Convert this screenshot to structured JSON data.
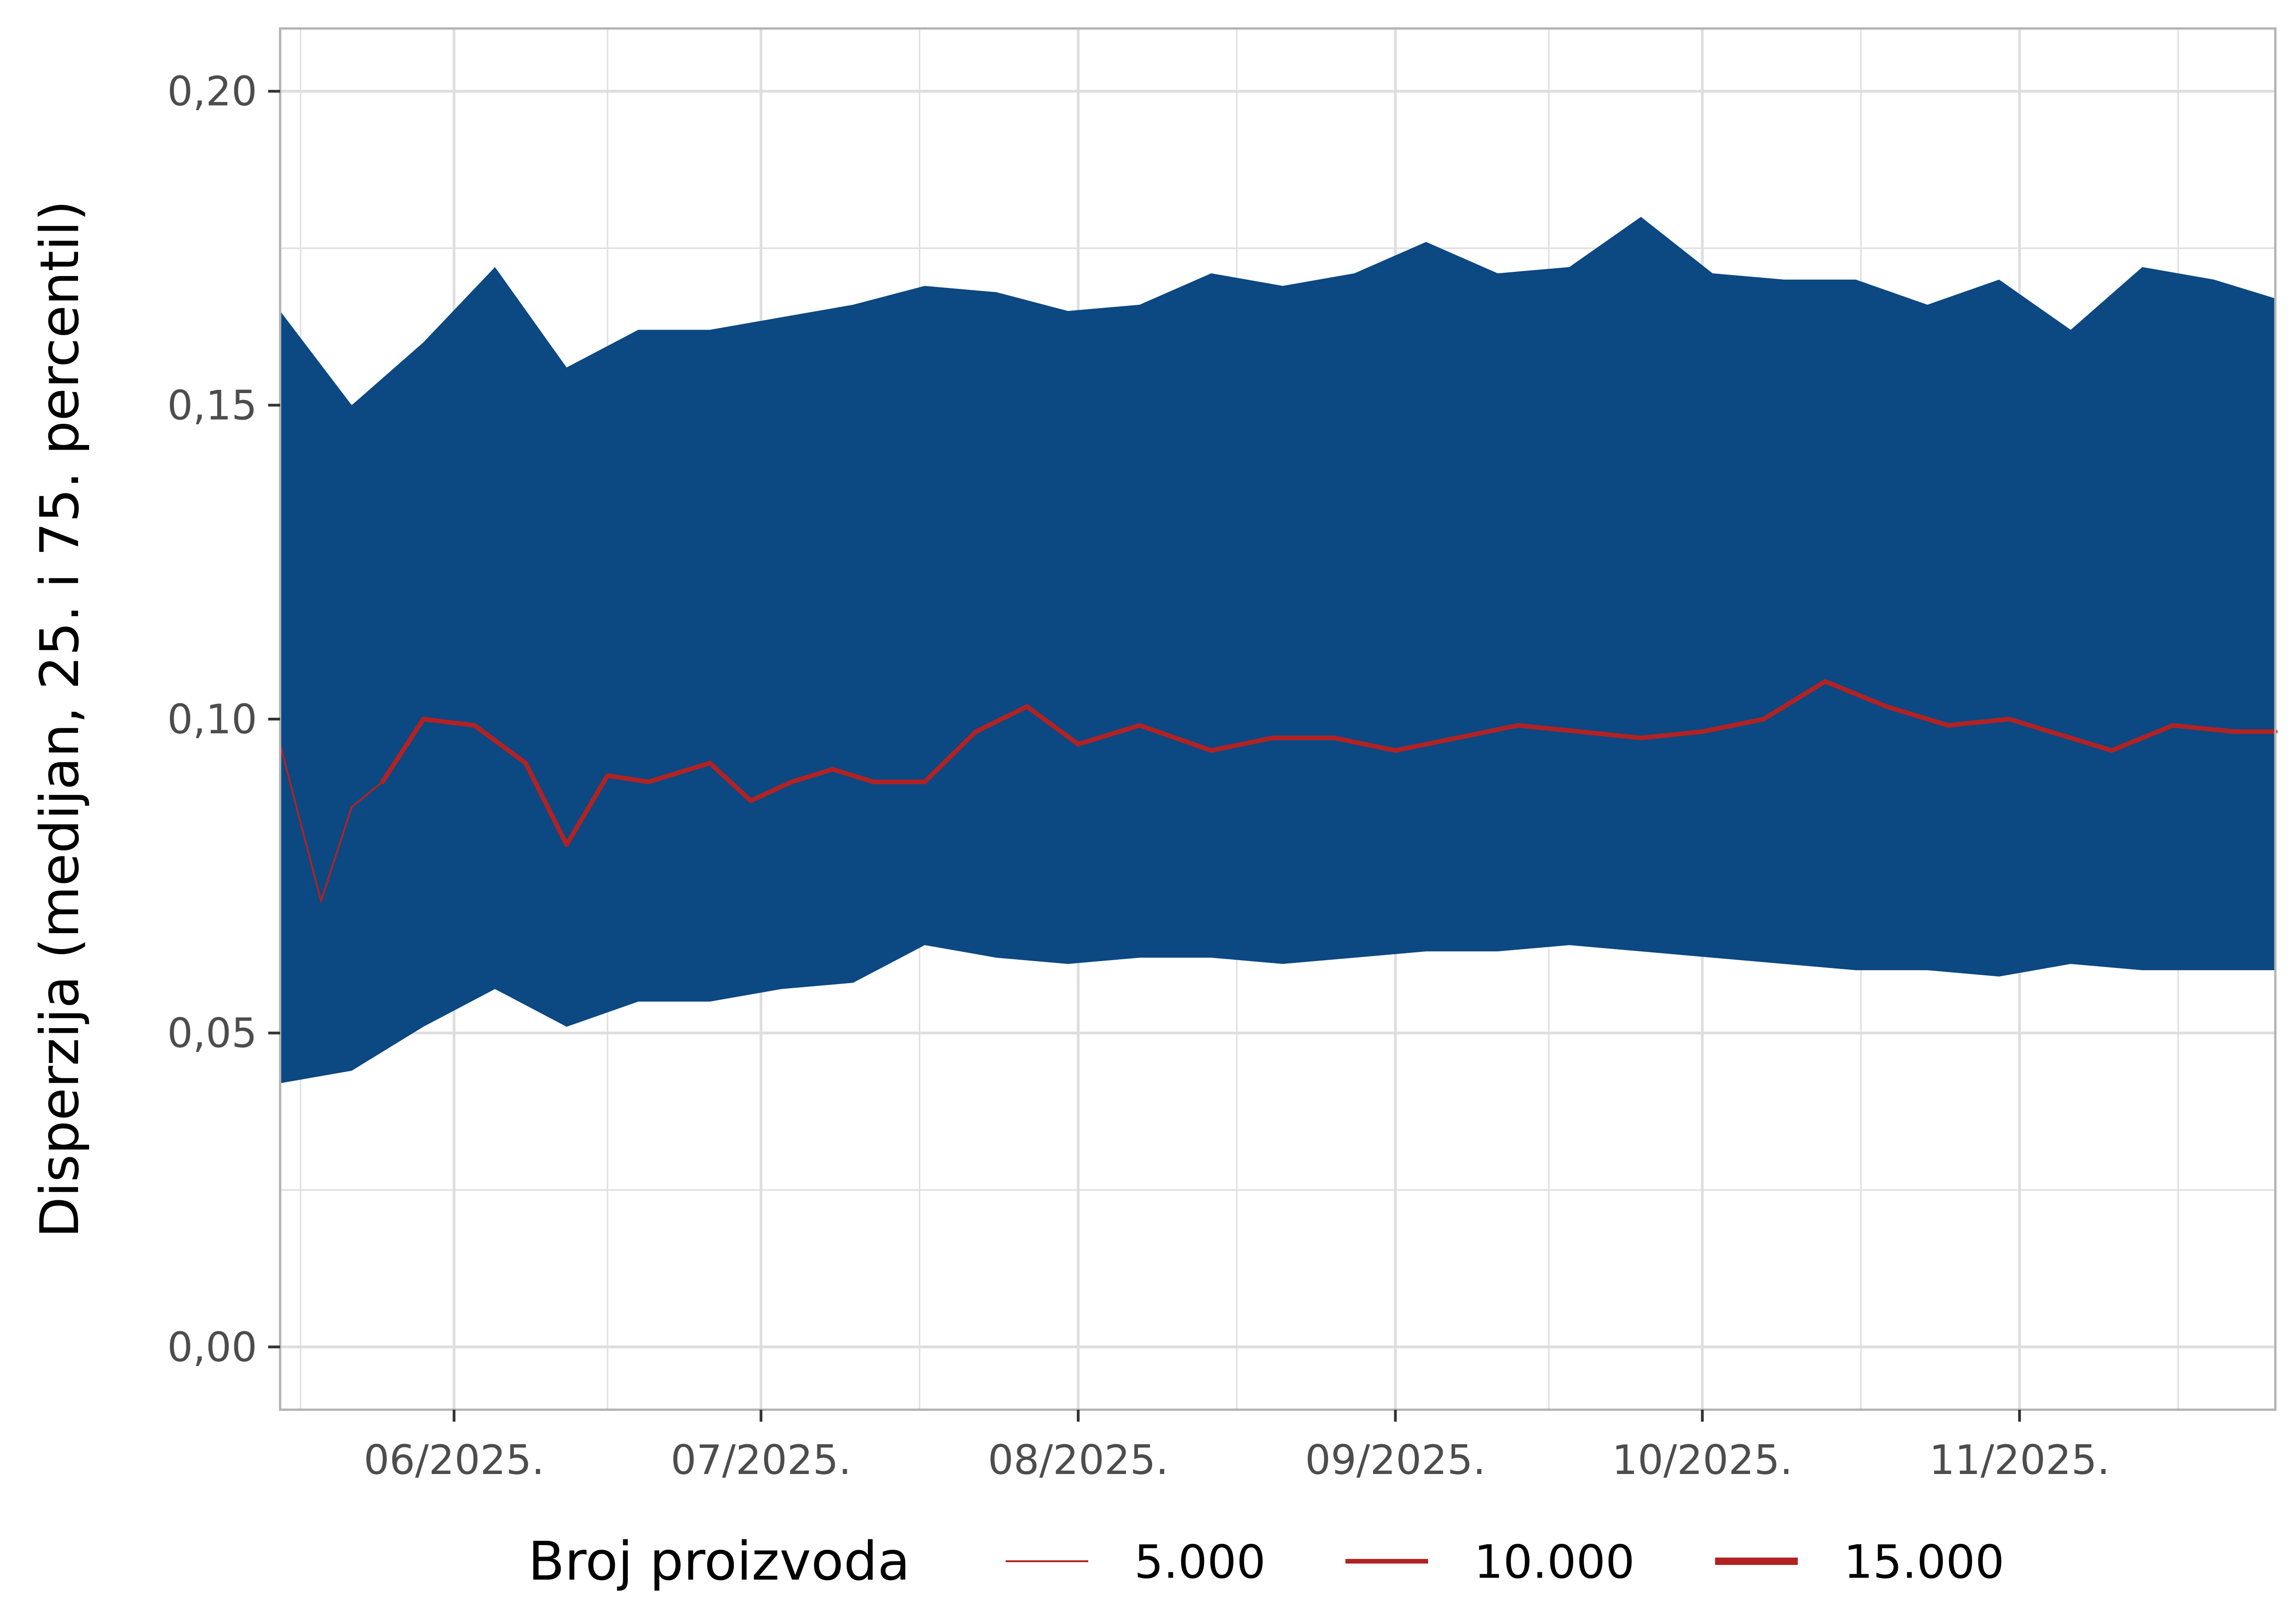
{
  "chart_data": {
    "type": "area",
    "ylabel": "Disperzija (medijan, 25. i 75. percentil)",
    "xlabel": "",
    "ylim": [
      -0.01,
      0.21
    ],
    "xlim": [
      "2025-05-15",
      "2025-11-26"
    ],
    "y_ticks": [
      0.0,
      0.05,
      0.1,
      0.15,
      0.2
    ],
    "y_tick_labels": [
      "0,00",
      "0,05",
      "0,10",
      "0,15",
      "0,20"
    ],
    "x_ticks": [
      "2025-06-01",
      "2025-07-01",
      "2025-08-01",
      "2025-09-01",
      "2025-10-01",
      "2025-11-01"
    ],
    "x_tick_labels": [
      "06/2025.",
      "07/2025.",
      "08/2025.",
      "09/2025.",
      "10/2025.",
      "11/2025."
    ],
    "grid": true,
    "colors": {
      "band": "#0C4882",
      "median": "#B22222",
      "grid": "#DEDEDE",
      "panel_border": "#B3B3B3"
    },
    "legend": {
      "position": "bottom",
      "title": "Broj proizvoda",
      "entries": [
        {
          "label": "5.000",
          "value": 5000
        },
        {
          "label": "10.000",
          "value": 10000
        },
        {
          "label": "15.000",
          "value": 15000
        }
      ]
    },
    "series": [
      {
        "kind": "band",
        "x": [
          "2025-05-15",
          "2025-05-22",
          "2025-05-29",
          "2025-06-05",
          "2025-06-12",
          "2025-06-19",
          "2025-06-26",
          "2025-07-03",
          "2025-07-10",
          "2025-07-17",
          "2025-07-24",
          "2025-07-31",
          "2025-08-07",
          "2025-08-14",
          "2025-08-21",
          "2025-08-28",
          "2025-09-04",
          "2025-09-11",
          "2025-09-18",
          "2025-09-25",
          "2025-10-02",
          "2025-10-09",
          "2025-10-16",
          "2025-10-23",
          "2025-10-30",
          "2025-11-06",
          "2025-11-13",
          "2025-11-20",
          "2025-11-26"
        ],
        "low": [
          0.042,
          0.044,
          0.051,
          0.057,
          0.051,
          0.055,
          0.055,
          0.057,
          0.058,
          0.064,
          0.062,
          0.061,
          0.062,
          0.062,
          0.061,
          0.062,
          0.063,
          0.063,
          0.064,
          0.063,
          0.062,
          0.061,
          0.06,
          0.06,
          0.059,
          0.061,
          0.06,
          0.06,
          0.06
        ],
        "high": [
          0.165,
          0.15,
          0.16,
          0.172,
          0.156,
          0.162,
          0.162,
          0.164,
          0.166,
          0.169,
          0.168,
          0.165,
          0.166,
          0.171,
          0.169,
          0.171,
          0.176,
          0.171,
          0.172,
          0.18,
          0.171,
          0.17,
          0.17,
          0.166,
          0.17,
          0.162,
          0.172,
          0.17,
          0.167
        ]
      },
      {
        "kind": "line",
        "name": "median",
        "x": [
          "2025-05-15",
          "2025-05-19",
          "2025-05-22",
          "2025-05-25",
          "2025-05-29",
          "2025-06-03",
          "2025-06-08",
          "2025-06-12",
          "2025-06-16",
          "2025-06-20",
          "2025-06-26",
          "2025-06-30",
          "2025-07-04",
          "2025-07-08",
          "2025-07-12",
          "2025-07-17",
          "2025-07-22",
          "2025-07-27",
          "2025-08-01",
          "2025-08-07",
          "2025-08-14",
          "2025-08-20",
          "2025-08-26",
          "2025-09-01",
          "2025-09-07",
          "2025-09-13",
          "2025-09-19",
          "2025-09-25",
          "2025-10-01",
          "2025-10-07",
          "2025-10-13",
          "2025-10-19",
          "2025-10-25",
          "2025-10-31",
          "2025-11-04",
          "2025-11-10",
          "2025-11-16",
          "2025-11-22",
          "2025-11-26"
        ],
        "values": [
          0.096,
          0.071,
          0.086,
          0.09,
          0.1,
          0.099,
          0.093,
          0.08,
          0.091,
          0.09,
          0.093,
          0.087,
          0.09,
          0.092,
          0.09,
          0.09,
          0.098,
          0.102,
          0.096,
          0.099,
          0.095,
          0.097,
          0.097,
          0.095,
          0.097,
          0.099,
          0.098,
          0.097,
          0.098,
          0.1,
          0.106,
          0.102,
          0.099,
          0.1,
          0.098,
          0.095,
          0.099,
          0.098,
          0.098
        ],
        "width_value": [
          5000,
          5000,
          5000,
          5000,
          10000,
          10000,
          10000,
          10000,
          10000,
          10000,
          10000,
          10000,
          10000,
          10000,
          10000,
          10000,
          10000,
          10000,
          10000,
          10000,
          10000,
          10000,
          10000,
          10000,
          10000,
          10000,
          10000,
          10000,
          10000,
          10000,
          10000,
          10000,
          10000,
          10000,
          10000,
          10000,
          10000,
          10000,
          10000
        ]
      }
    ]
  }
}
